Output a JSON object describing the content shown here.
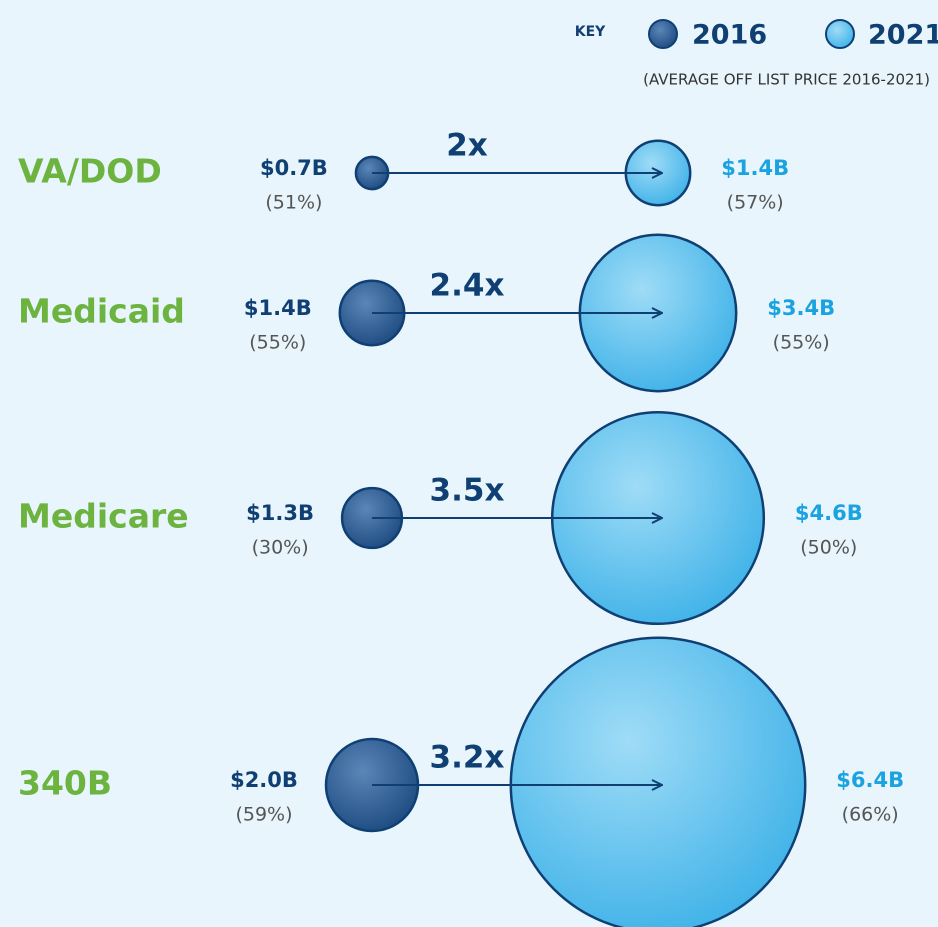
{
  "chart_data": {
    "type": "bubble-pair",
    "key_label": "KEY",
    "note": "(AVERAGE OFF LIST PRICE 2016-2021)",
    "categories": [
      "VA/DOD",
      "Medicaid",
      "Medicare",
      "340B"
    ],
    "series": [
      {
        "name": "2016",
        "color": "#2b5b91",
        "label_color": "#0f3f73",
        "values": [
          0.7,
          1.4,
          1.3,
          2.0
        ],
        "value_labels": [
          "$0.7B",
          "$1.4B",
          "$1.3B",
          "$2.0B"
        ],
        "shares": [
          51,
          55,
          30,
          59
        ],
        "share_labels": [
          "(51%)",
          "(55%)",
          "(30%)",
          "(59%)"
        ]
      },
      {
        "name": "2021",
        "color": "#5bc3ee",
        "label_color": "#1aa3e0",
        "values": [
          1.4,
          3.4,
          4.6,
          6.4
        ],
        "value_labels": [
          "$1.4B",
          "$3.4B",
          "$4.6B",
          "$6.4B"
        ],
        "shares": [
          57,
          55,
          50,
          66
        ],
        "share_labels": [
          "(57%)",
          "(55%)",
          "(50%)",
          "(66%)"
        ]
      }
    ],
    "ratios": [
      2,
      2.4,
      3.5,
      3.2
    ],
    "ratio_labels": [
      "2x",
      "2.4x",
      "3.5x",
      "3.2x"
    ]
  }
}
